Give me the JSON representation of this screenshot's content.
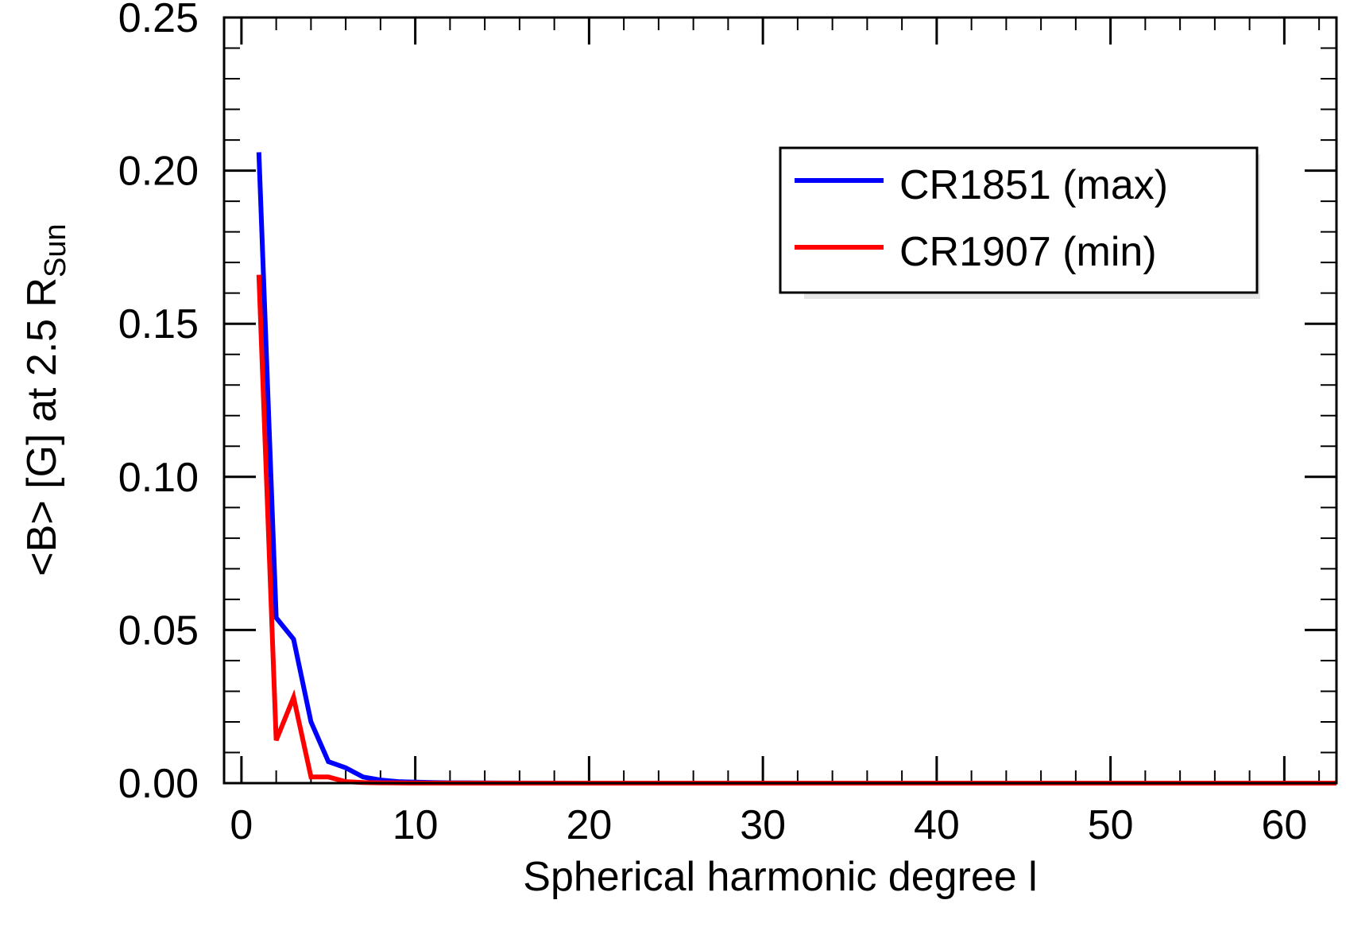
{
  "chart_data": {
    "type": "line",
    "title": "",
    "xlabel": "Spherical harmonic degree l",
    "ylabel": {
      "main": "<B> [G] at 2.5 R",
      "subscript": "Sun"
    },
    "xlim": [
      -1,
      63
    ],
    "ylim": [
      0,
      0.25
    ],
    "x_ticks": [
      0,
      10,
      20,
      30,
      40,
      50,
      60
    ],
    "x_tick_labels": [
      "0",
      "10",
      "20",
      "30",
      "40",
      "50",
      "60"
    ],
    "x_minor_step": 2,
    "y_ticks": [
      0.0,
      0.05,
      0.1,
      0.15,
      0.2,
      0.25
    ],
    "y_tick_labels": [
      "0.00",
      "0.05",
      "0.10",
      "0.15",
      "0.20",
      "0.25"
    ],
    "y_minor_step": 0.01,
    "grid": false,
    "legend_position": "top-right",
    "series": [
      {
        "name": "CR1851 (max)",
        "color": "#0000ff",
        "x": [
          1,
          2,
          3,
          4,
          5,
          6,
          7,
          8,
          9,
          10,
          11,
          12,
          13,
          14,
          15,
          20,
          30,
          40,
          50,
          60,
          63
        ],
        "values": [
          0.206,
          0.054,
          0.047,
          0.02,
          0.007,
          0.005,
          0.002,
          0.001,
          0.0005,
          0.0003,
          0.0002,
          0.0001,
          0.0001,
          5e-05,
          3e-05,
          1e-05,
          0,
          0,
          0,
          0,
          0
        ]
      },
      {
        "name": "CR1907 (min)",
        "color": "#ff0000",
        "x": [
          1,
          2,
          3,
          4,
          5,
          6,
          7,
          8,
          9,
          10,
          15,
          20,
          30,
          40,
          50,
          60,
          63
        ],
        "values": [
          0.166,
          0.014,
          0.028,
          0.002,
          0.002,
          0.0005,
          0.0002,
          0.0001,
          5e-05,
          3e-05,
          0,
          0,
          0,
          0,
          0,
          0,
          0
        ]
      }
    ]
  }
}
